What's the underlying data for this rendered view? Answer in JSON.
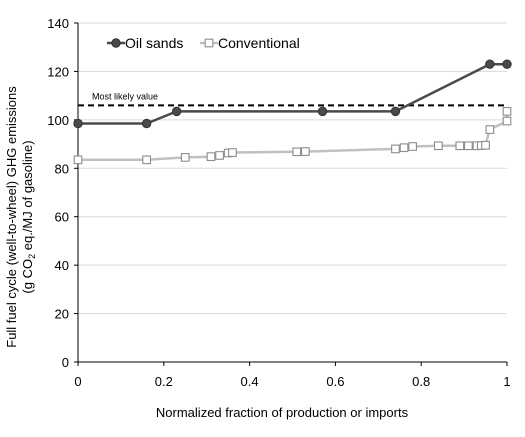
{
  "chart_data": {
    "type": "line",
    "xlabel": "Normalized fraction of production or imports",
    "ylabel_line1": "Full fuel cycle (well-to-wheel) GHG emissions",
    "ylabel_line2_pre": "(g CO",
    "ylabel_line2_sub": "2",
    "ylabel_line2_post": " eq./MJ of gasoline)",
    "xlim": [
      0,
      1
    ],
    "ylim": [
      0,
      140
    ],
    "xticks": [
      "0",
      "0.2",
      "0.4",
      "0.6",
      "0.8",
      "1"
    ],
    "xtick_values": [
      0,
      0.2,
      0.4,
      0.6,
      0.8,
      1
    ],
    "yticks": [
      "0",
      "20",
      "40",
      "60",
      "80",
      "100",
      "120",
      "140"
    ],
    "ytick_values": [
      0,
      20,
      40,
      60,
      80,
      100,
      120,
      140
    ],
    "grid": "horizontal",
    "legend_position": "top-left",
    "reference_line": {
      "label": "Most likely value",
      "y": 106,
      "style": "dashed"
    },
    "series": [
      {
        "name": "Oil sands",
        "color": "#4a4a4a",
        "marker": "circle-filled",
        "points": [
          [
            0,
            98.5
          ],
          [
            0.16,
            98.5
          ],
          [
            0.23,
            103.5
          ],
          [
            0.57,
            103.5
          ],
          [
            0.74,
            103.5
          ],
          [
            0.96,
            123
          ],
          [
            1.0,
            123
          ]
        ]
      },
      {
        "name": "Conventional",
        "color": "#c0c0c0",
        "marker": "square-open",
        "points": [
          [
            0,
            83.5
          ],
          [
            0.16,
            83.5
          ],
          [
            0.25,
            84.5
          ],
          [
            0.31,
            84.8
          ],
          [
            0.33,
            85.3
          ],
          [
            0.35,
            86.3
          ],
          [
            0.36,
            86.5
          ],
          [
            0.51,
            86.8
          ],
          [
            0.53,
            86.9
          ],
          [
            0.74,
            88
          ],
          [
            0.76,
            88.5
          ],
          [
            0.78,
            89
          ],
          [
            0.84,
            89.3
          ],
          [
            0.89,
            89.3
          ],
          [
            0.91,
            89.3
          ],
          [
            0.93,
            89.3
          ],
          [
            0.94,
            89.4
          ],
          [
            0.95,
            89.5
          ],
          [
            0.96,
            96
          ],
          [
            1.0,
            99.5
          ],
          [
            1.0,
            103.5
          ]
        ]
      }
    ]
  }
}
